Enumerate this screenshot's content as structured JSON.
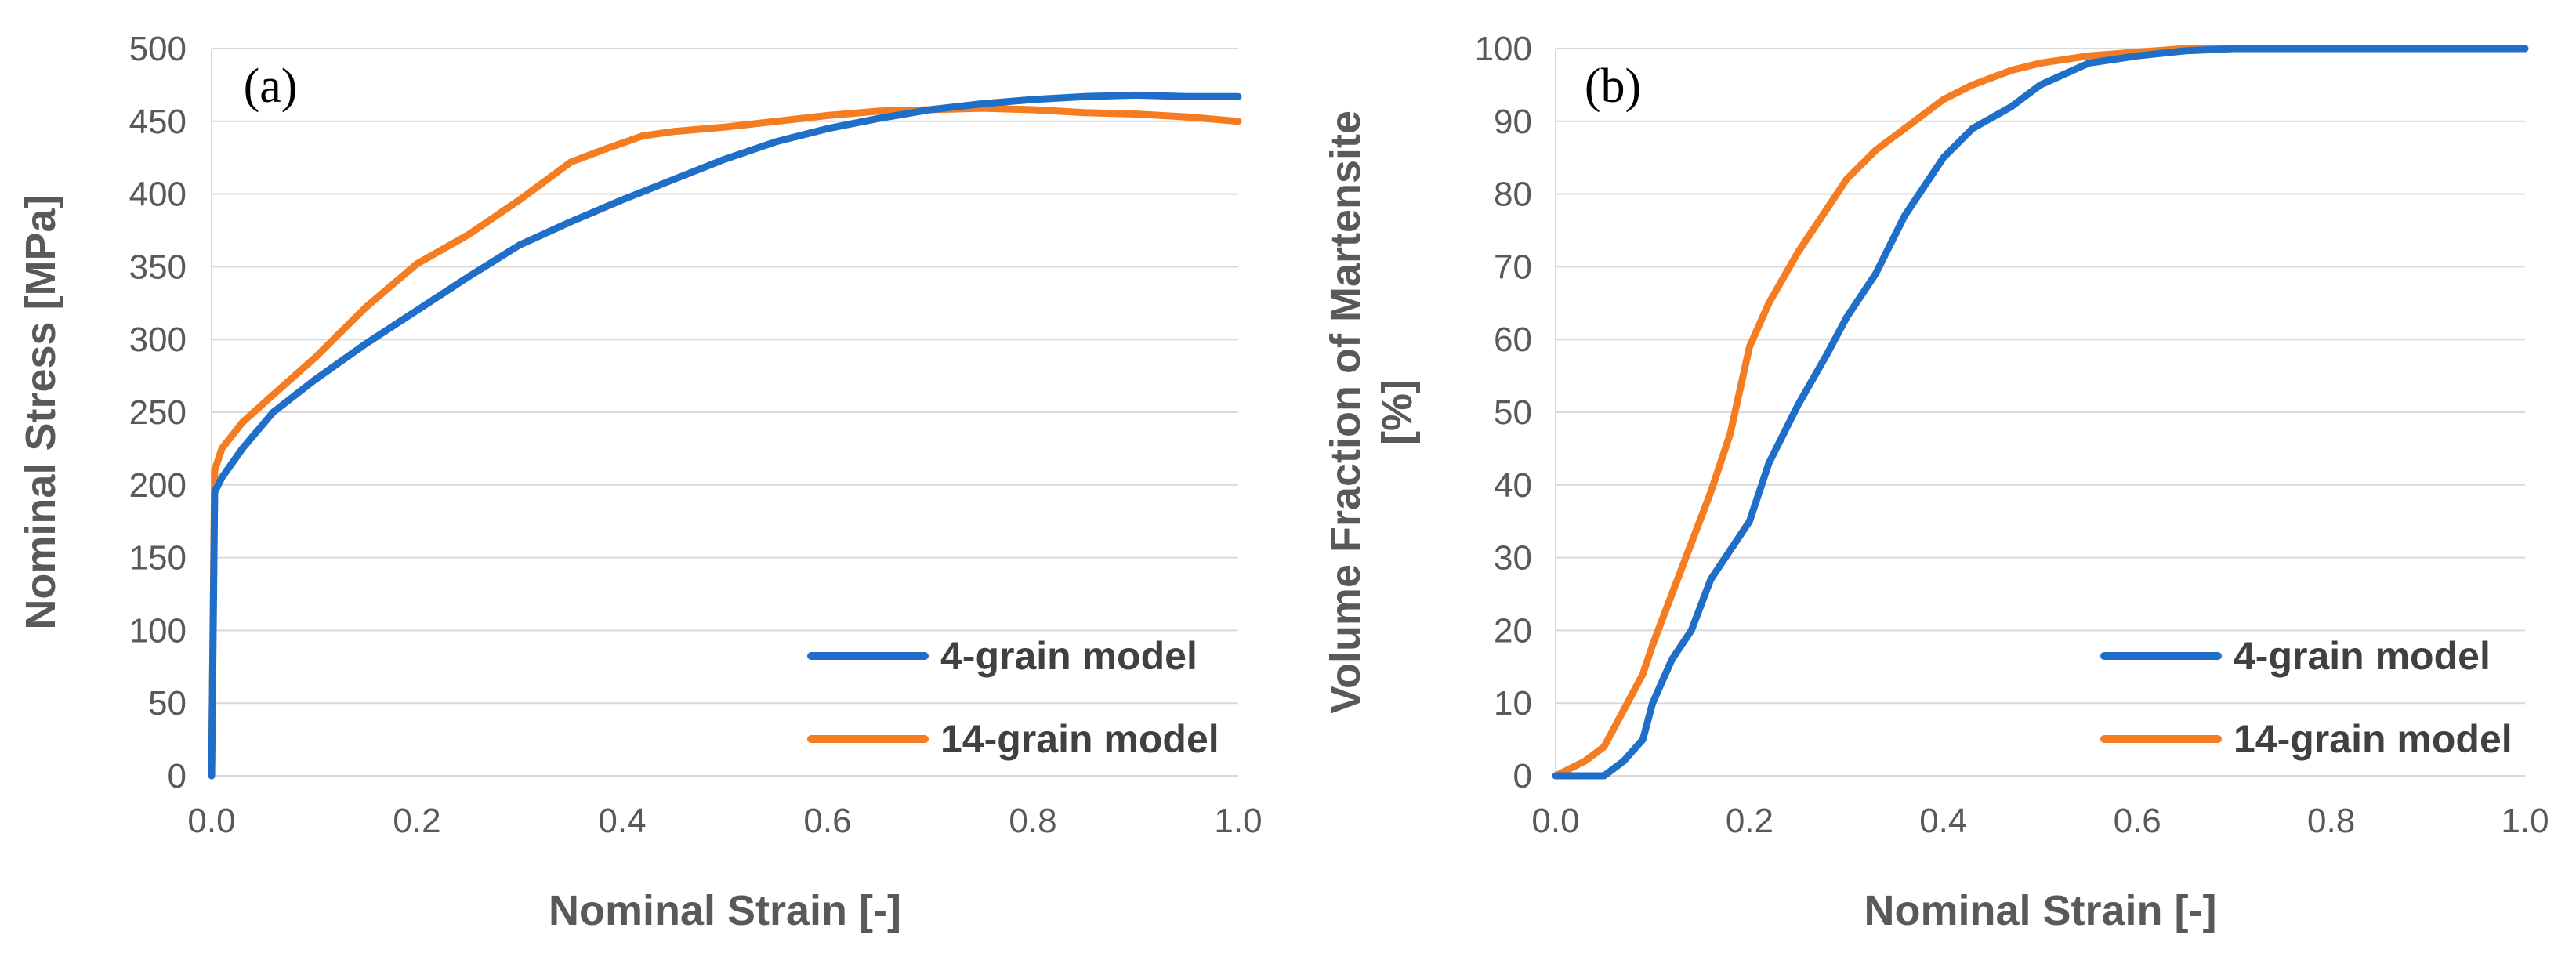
{
  "colors": {
    "blue": "#1f6fc9",
    "orange": "#f57c20"
  },
  "chart_data": [
    {
      "type": "line",
      "panel_label": "(a)",
      "xlabel": "Nominal Strain [-]",
      "ylabel": "Nominal Stress [MPa]",
      "xlim": [
        0,
        1.0
      ],
      "ylim": [
        0,
        500
      ],
      "xticks": [
        0.0,
        0.2,
        0.4,
        0.6,
        0.8,
        1.0
      ],
      "xtick_labels": [
        "0.0",
        "0.2",
        "0.4",
        "0.6",
        "0.8",
        "1.0"
      ],
      "yticks": [
        0,
        50,
        100,
        150,
        200,
        250,
        300,
        350,
        400,
        450,
        500
      ],
      "ytick_labels": [
        "0",
        "50",
        "100",
        "150",
        "200",
        "250",
        "300",
        "350",
        "400",
        "450",
        "500"
      ],
      "grid": true,
      "legend_position": "bottom-right",
      "series": [
        {
          "name": "4-grain model",
          "color": "#1f6fc9",
          "x": [
            0,
            0.003,
            0.01,
            0.03,
            0.06,
            0.1,
            0.15,
            0.2,
            0.25,
            0.3,
            0.35,
            0.4,
            0.45,
            0.5,
            0.55,
            0.6,
            0.65,
            0.7,
            0.75,
            0.8,
            0.85,
            0.9,
            0.95,
            1.0
          ],
          "y": [
            0,
            195,
            205,
            225,
            250,
            272,
            297,
            320,
            343,
            365,
            381,
            396,
            410,
            424,
            436,
            445,
            452,
            458,
            462,
            465,
            467,
            468,
            467,
            467
          ]
        },
        {
          "name": "14-grain model",
          "color": "#f57c20",
          "x": [
            0,
            0.003,
            0.01,
            0.03,
            0.06,
            0.1,
            0.15,
            0.2,
            0.25,
            0.3,
            0.35,
            0.38,
            0.42,
            0.45,
            0.5,
            0.55,
            0.6,
            0.65,
            0.7,
            0.75,
            0.8,
            0.85,
            0.9,
            0.95,
            1.0
          ],
          "y": [
            0,
            210,
            225,
            243,
            262,
            287,
            322,
            352,
            372,
            396,
            422,
            430,
            440,
            443,
            446,
            450,
            454,
            457,
            458,
            459,
            458,
            456,
            455,
            453,
            450
          ]
        }
      ]
    },
    {
      "type": "line",
      "panel_label": "(b)",
      "xlabel": "Nominal Strain [-]",
      "ylabel": "Volume Fraction of Martensite [%]",
      "ylabel_lines": [
        "Volume Fraction of Martensite",
        "[%]"
      ],
      "xlim": [
        0,
        1.0
      ],
      "ylim": [
        0,
        100
      ],
      "xticks": [
        0.0,
        0.2,
        0.4,
        0.6,
        0.8,
        1.0
      ],
      "xtick_labels": [
        "0.0",
        "0.2",
        "0.4",
        "0.6",
        "0.8",
        "1.0"
      ],
      "yticks": [
        0,
        10,
        20,
        30,
        40,
        50,
        60,
        70,
        80,
        90,
        100
      ],
      "ytick_labels": [
        "0",
        "10",
        "20",
        "30",
        "40",
        "50",
        "60",
        "70",
        "80",
        "90",
        "100"
      ],
      "grid": true,
      "legend_position": "bottom-right",
      "series": [
        {
          "name": "4-grain model",
          "color": "#1f6fc9",
          "x": [
            0,
            0.05,
            0.07,
            0.09,
            0.1,
            0.12,
            0.14,
            0.16,
            0.18,
            0.2,
            0.22,
            0.25,
            0.28,
            0.3,
            0.33,
            0.36,
            0.4,
            0.43,
            0.47,
            0.5,
            0.55,
            0.6,
            0.65,
            0.7,
            0.8,
            0.9,
            1.0
          ],
          "y": [
            0,
            0,
            2,
            5,
            10,
            16,
            20,
            27,
            31,
            35,
            43,
            51,
            58,
            63,
            69,
            77,
            85,
            89,
            92,
            95,
            98,
            99,
            99.7,
            100,
            100,
            100,
            100
          ]
        },
        {
          "name": "14-grain model",
          "color": "#f57c20",
          "x": [
            0,
            0.03,
            0.05,
            0.07,
            0.09,
            0.1,
            0.12,
            0.14,
            0.16,
            0.18,
            0.2,
            0.22,
            0.25,
            0.28,
            0.3,
            0.33,
            0.36,
            0.4,
            0.43,
            0.47,
            0.5,
            0.55,
            0.6,
            0.65,
            0.7,
            0.8,
            0.9,
            1.0
          ],
          "y": [
            0,
            2,
            4,
            9,
            14,
            18,
            25,
            32,
            39,
            47,
            59,
            65,
            72,
            78,
            82,
            86,
            89,
            93,
            95,
            97,
            98,
            99,
            99.5,
            100,
            100,
            100,
            100,
            100
          ]
        }
      ]
    }
  ]
}
